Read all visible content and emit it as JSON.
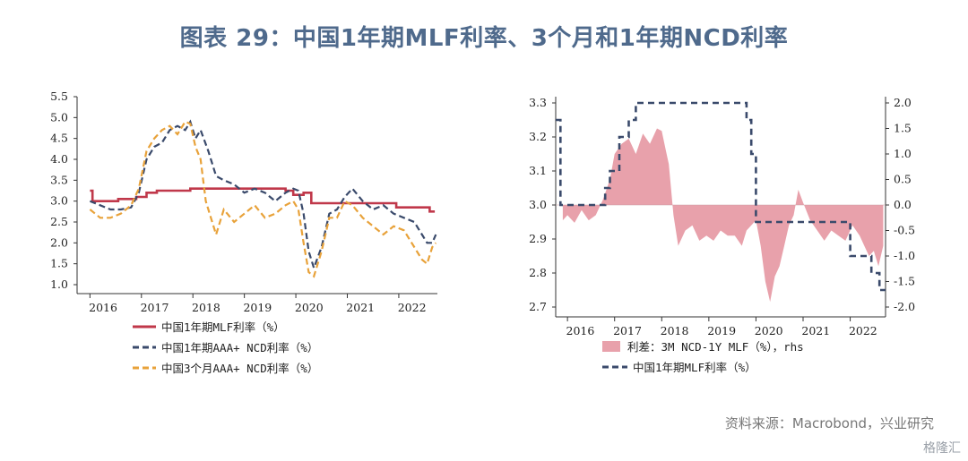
{
  "title": "图表 29：中国1年期MLF利率、3个月和1年期NCD利率",
  "source": "资料来源：Macrobond，兴业研究",
  "watermark": "格隆汇",
  "colors": {
    "mlf": "#c0384a",
    "ncd1y": "#3a4a6b",
    "ncd3m": "#e8a23a",
    "spread": "#e8a1ab",
    "axis": "#333333"
  },
  "chart_data": [
    {
      "type": "line",
      "ylim": [
        1.0,
        5.5
      ],
      "yticks": [
        "5.5",
        "5.0",
        "4.5",
        "4.0",
        "3.5",
        "3.0",
        "2.5",
        "2.0",
        "1.5",
        "1.0"
      ],
      "xlim": [
        2015.75,
        2022.75
      ],
      "xtick_labels": [
        "2016",
        "2017",
        "2018",
        "2019",
        "2020",
        "2021",
        "2022"
      ],
      "legend_position": "bottom",
      "series": [
        {
          "name": "中国1年期MLF利率（%）",
          "style": "solid",
          "color": "#c0384a",
          "x": [
            2016.0,
            2016.05,
            2016.05,
            2016.55,
            2016.55,
            2016.9,
            2016.9,
            2017.1,
            2017.1,
            2017.3,
            2017.3,
            2017.95,
            2017.95,
            2018.1,
            2018.1,
            2019.8,
            2019.8,
            2019.95,
            2019.95,
            2020.15,
            2020.15,
            2020.3,
            2020.3,
            2021.95,
            2021.95,
            2022.6,
            2022.6,
            2022.7
          ],
          "y": [
            3.25,
            3.25,
            3.0,
            3.0,
            3.05,
            3.05,
            3.1,
            3.1,
            3.2,
            3.2,
            3.25,
            3.25,
            3.3,
            3.3,
            3.3,
            3.3,
            3.25,
            3.25,
            3.15,
            3.15,
            3.2,
            3.2,
            2.95,
            2.95,
            2.85,
            2.85,
            2.75,
            2.75
          ]
        },
        {
          "name": "中国1年期AAA+ NCD利率（%）",
          "style": "dash",
          "color": "#3a4a6b",
          "x": [
            2016.0,
            2016.2,
            2016.4,
            2016.6,
            2016.8,
            2016.95,
            2017.1,
            2017.25,
            2017.4,
            2017.55,
            2017.7,
            2017.85,
            2017.95,
            2018.05,
            2018.15,
            2018.3,
            2018.45,
            2018.6,
            2018.8,
            2019.0,
            2019.2,
            2019.4,
            2019.6,
            2019.8,
            2019.95,
            2020.05,
            2020.15,
            2020.25,
            2020.35,
            2020.5,
            2020.65,
            2020.8,
            2020.95,
            2021.1,
            2021.3,
            2021.5,
            2021.7,
            2021.9,
            2022.1,
            2022.3,
            2022.45,
            2022.55,
            2022.65,
            2022.72
          ],
          "y": [
            3.0,
            2.9,
            2.8,
            2.8,
            2.85,
            3.2,
            4.0,
            4.3,
            4.4,
            4.7,
            4.8,
            4.7,
            4.9,
            4.5,
            4.7,
            4.2,
            3.6,
            3.5,
            3.4,
            3.2,
            3.3,
            3.2,
            3.0,
            3.2,
            3.3,
            3.25,
            2.7,
            1.8,
            1.4,
            1.9,
            2.7,
            2.8,
            3.1,
            3.3,
            3.0,
            2.8,
            2.9,
            2.7,
            2.6,
            2.5,
            2.2,
            2.0,
            2.0,
            2.2
          ]
        },
        {
          "name": "中国3个月AAA+ NCD利率（%）",
          "style": "dash",
          "color": "#e8a23a",
          "x": [
            2016.0,
            2016.2,
            2016.4,
            2016.6,
            2016.8,
            2016.95,
            2017.1,
            2017.25,
            2017.4,
            2017.55,
            2017.7,
            2017.85,
            2017.95,
            2018.05,
            2018.15,
            2018.25,
            2018.35,
            2018.45,
            2018.6,
            2018.8,
            2019.0,
            2019.2,
            2019.4,
            2019.6,
            2019.8,
            2019.95,
            2020.05,
            2020.15,
            2020.25,
            2020.35,
            2020.5,
            2020.65,
            2020.8,
            2020.95,
            2021.1,
            2021.3,
            2021.5,
            2021.7,
            2021.9,
            2022.1,
            2022.3,
            2022.45,
            2022.55,
            2022.65,
            2022.72
          ],
          "y": [
            2.8,
            2.6,
            2.6,
            2.7,
            2.9,
            3.3,
            4.2,
            4.5,
            4.7,
            4.8,
            4.6,
            4.9,
            4.85,
            4.3,
            4.0,
            3.0,
            2.6,
            2.2,
            2.8,
            2.5,
            2.7,
            2.9,
            2.6,
            2.7,
            2.9,
            3.0,
            2.8,
            2.0,
            1.3,
            1.2,
            1.8,
            2.6,
            2.6,
            3.0,
            2.9,
            2.6,
            2.4,
            2.2,
            2.4,
            2.3,
            1.9,
            1.6,
            1.5,
            1.9,
            2.0
          ]
        }
      ]
    },
    {
      "type": "area",
      "ylim": [
        2.7,
        3.3
      ],
      "yticks": [
        "3.3",
        "3.2",
        "3.1",
        "3.0",
        "2.9",
        "2.8",
        "2.7"
      ],
      "y2lim": [
        -2.0,
        2.0
      ],
      "y2ticks": [
        "2.0",
        "1.5",
        "1.0",
        "0.5",
        "0.0",
        "-0.5",
        "-1.0",
        "-1.5",
        "-2.0"
      ],
      "xlim": [
        2015.75,
        2022.75
      ],
      "xtick_labels": [
        "2016",
        "2017",
        "2018",
        "2019",
        "2020",
        "2021",
        "2022"
      ],
      "legend_position": "bottom",
      "series": [
        {
          "name": "利差：3M NCD-1Y MLF（%），rhs",
          "axis": "right",
          "color": "#e8a1ab",
          "x": [
            2015.9,
            2016.0,
            2016.15,
            2016.3,
            2016.45,
            2016.6,
            2016.75,
            2016.9,
            2017.0,
            2017.15,
            2017.3,
            2017.45,
            2017.6,
            2017.75,
            2017.9,
            2018.0,
            2018.08,
            2018.15,
            2018.25,
            2018.35,
            2018.5,
            2018.65,
            2018.8,
            2018.95,
            2019.1,
            2019.25,
            2019.4,
            2019.55,
            2019.7,
            2019.8,
            2019.9,
            2020.0,
            2020.1,
            2020.2,
            2020.3,
            2020.4,
            2020.5,
            2020.6,
            2020.7,
            2020.8,
            2020.9,
            2021.0,
            2021.15,
            2021.3,
            2021.45,
            2021.6,
            2021.75,
            2021.9,
            2022.05,
            2022.2,
            2022.3,
            2022.4,
            2022.5,
            2022.6,
            2022.7
          ],
          "y": [
            -0.3,
            -0.2,
            -0.35,
            -0.1,
            -0.3,
            -0.2,
            0.1,
            0.5,
            1.0,
            1.2,
            1.3,
            1.0,
            1.4,
            1.2,
            1.5,
            1.45,
            1.1,
            0.8,
            -0.2,
            -0.8,
            -0.5,
            -0.4,
            -0.7,
            -0.6,
            -0.7,
            -0.5,
            -0.6,
            -0.6,
            -0.8,
            -0.5,
            -0.4,
            -0.3,
            -0.8,
            -1.5,
            -1.9,
            -1.4,
            -1.2,
            -0.8,
            -0.4,
            -0.2,
            0.3,
            0.05,
            -0.3,
            -0.5,
            -0.7,
            -0.5,
            -0.6,
            -0.7,
            -0.4,
            -0.6,
            -0.8,
            -1.0,
            -0.9,
            -1.2,
            -0.8
          ]
        },
        {
          "name": "中国1年期MLF利率（%）",
          "axis": "left",
          "style": "dash",
          "color": "#3a4a6b",
          "x": [
            2015.75,
            2015.85,
            2015.85,
            2016.8,
            2016.8,
            2016.9,
            2016.9,
            2017.1,
            2017.1,
            2017.3,
            2017.3,
            2017.45,
            2017.45,
            2019.8,
            2019.8,
            2019.9,
            2019.9,
            2020.0,
            2020.0,
            2022.0,
            2022.0,
            2022.45,
            2022.45,
            2022.62,
            2022.62,
            2022.75
          ],
          "y": [
            3.25,
            3.25,
            3.0,
            3.0,
            3.05,
            3.05,
            3.1,
            3.1,
            3.2,
            3.2,
            3.25,
            3.25,
            3.3,
            3.3,
            3.25,
            3.25,
            3.15,
            3.15,
            2.95,
            2.95,
            2.85,
            2.85,
            2.8,
            2.8,
            2.75,
            2.75
          ]
        }
      ]
    }
  ]
}
